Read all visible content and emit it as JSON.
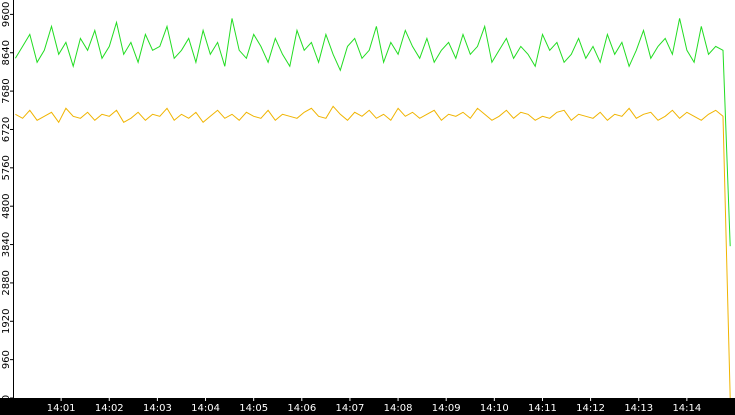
{
  "chart_data": {
    "type": "line",
    "x": [
      840.05,
      840.2,
      840.35,
      840.5,
      840.65,
      840.8,
      840.95,
      841.1,
      841.25,
      841.4,
      841.55,
      841.7,
      841.85,
      842,
      842.15,
      842.3,
      842.45,
      842.6,
      842.75,
      842.9,
      843.05,
      843.2,
      843.35,
      843.5,
      843.65,
      843.8,
      843.95,
      844.1,
      844.25,
      844.4,
      844.55,
      844.7,
      844.85,
      845,
      845.15,
      845.3,
      845.45,
      845.6,
      845.75,
      845.9,
      846.05,
      846.2,
      846.35,
      846.5,
      846.65,
      846.8,
      846.95,
      847.1,
      847.25,
      847.4,
      847.55,
      847.7,
      847.85,
      848,
      848.15,
      848.3,
      848.45,
      848.6,
      848.75,
      848.9,
      849.05,
      849.2,
      849.35,
      849.5,
      849.65,
      849.8,
      849.95,
      850.1,
      850.25,
      850.4,
      850.55,
      850.7,
      850.85,
      851,
      851.15,
      851.3,
      851.45,
      851.6,
      851.75,
      851.9,
      852.05,
      852.2,
      852.35,
      852.5,
      852.65,
      852.8,
      852.95,
      853.1,
      853.25,
      853.4,
      853.55,
      853.7,
      853.85,
      854,
      854.15,
      854.3,
      854.45,
      854.6,
      854.75,
      854.9
    ],
    "series": [
      {
        "color": "#22dd22",
        "values": [
          8500,
          8800,
          9100,
          8400,
          8700,
          9300,
          8600,
          8900,
          8300,
          9000,
          8700,
          9200,
          8500,
          8800,
          9400,
          8600,
          8900,
          8400,
          9100,
          8700,
          8800,
          9300,
          8500,
          8700,
          9000,
          8400,
          9200,
          8600,
          8900,
          8300,
          9500,
          8700,
          8500,
          9100,
          8800,
          8400,
          9000,
          8600,
          8300,
          9200,
          8700,
          8900,
          8400,
          9100,
          8600,
          8200,
          8800,
          9000,
          8500,
          8700,
          9300,
          8400,
          8900,
          8600,
          9200,
          8800,
          8500,
          9000,
          8400,
          8700,
          8900,
          8500,
          9100,
          8600,
          8800,
          9300,
          8400,
          8700,
          9000,
          8500,
          8800,
          8600,
          8300,
          9100,
          8700,
          8900,
          8400,
          8600,
          9000,
          8500,
          8800,
          8400,
          9100,
          8600,
          8900,
          8300,
          8700,
          9200,
          8500,
          8800,
          9000,
          8600,
          9500,
          8700,
          8400,
          9300,
          8600,
          8800,
          8700,
          3800
        ]
      },
      {
        "color": "#f0b400",
        "values": [
          7100,
          7000,
          7200,
          6950,
          7050,
          7150,
          6900,
          7250,
          7050,
          7000,
          7150,
          6950,
          7100,
          7050,
          7200,
          6900,
          7000,
          7150,
          6950,
          7100,
          7050,
          7250,
          6950,
          7100,
          7000,
          7150,
          6900,
          7050,
          7200,
          7000,
          7100,
          6950,
          7150,
          7050,
          7000,
          7200,
          6950,
          7100,
          7050,
          7000,
          7150,
          7250,
          7050,
          7000,
          7300,
          7100,
          6950,
          7150,
          7050,
          7200,
          7000,
          7100,
          6950,
          7250,
          7050,
          7150,
          7000,
          7100,
          7200,
          6950,
          7100,
          7050,
          7150,
          7000,
          7250,
          7100,
          6950,
          7050,
          7200,
          7000,
          7150,
          7100,
          6950,
          7050,
          7000,
          7150,
          7200,
          6950,
          7100,
          7050,
          7000,
          7150,
          6950,
          7100,
          7050,
          7250,
          7000,
          7100,
          7150,
          6950,
          7050,
          7200,
          7000,
          7150,
          7050,
          6950,
          7100,
          7200,
          7050,
          0
        ]
      }
    ],
    "xlim": [
      840,
      855
    ],
    "xticks": [
      {
        "value": 841,
        "label": "14:01"
      },
      {
        "value": 842,
        "label": "14:02"
      },
      {
        "value": 843,
        "label": "14:03"
      },
      {
        "value": 844,
        "label": "14:04"
      },
      {
        "value": 845,
        "label": "14:05"
      },
      {
        "value": 846,
        "label": "14:06"
      },
      {
        "value": 847,
        "label": "14:07"
      },
      {
        "value": 848,
        "label": "14:08"
      },
      {
        "value": 849,
        "label": "14:09"
      },
      {
        "value": 850,
        "label": "14:10"
      },
      {
        "value": 851,
        "label": "14:11"
      },
      {
        "value": 852,
        "label": "14:12"
      },
      {
        "value": 853,
        "label": "14:13"
      },
      {
        "value": 854,
        "label": "14:14"
      }
    ],
    "ylim": [
      0,
      9960
    ],
    "yticks": [
      0,
      960,
      1920,
      2880,
      3840,
      4800,
      5760,
      6720,
      7680,
      8640,
      9600
    ]
  }
}
